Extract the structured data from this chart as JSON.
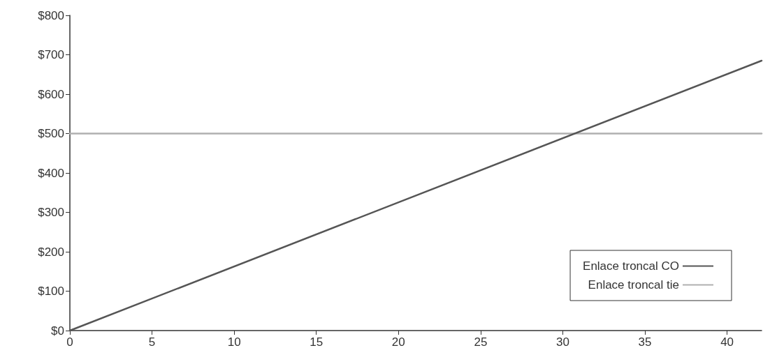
{
  "chart_data": {
    "type": "line",
    "x": [
      0,
      42.1
    ],
    "xlim": [
      0,
      42.1
    ],
    "xticks": [
      0,
      5,
      10,
      15,
      20,
      25,
      30,
      35,
      40
    ],
    "ylim": [
      0,
      800
    ],
    "yticks": [
      {
        "value": 0,
        "label": "$0"
      },
      {
        "value": 100,
        "label": "$100"
      },
      {
        "value": 200,
        "label": "$200"
      },
      {
        "value": 300,
        "label": "$300"
      },
      {
        "value": 400,
        "label": "$400"
      },
      {
        "value": 500,
        "label": "$500"
      },
      {
        "value": 600,
        "label": "$600"
      },
      {
        "value": 700,
        "label": "$700"
      },
      {
        "value": 800,
        "label": "$800"
      }
    ],
    "series": [
      {
        "name": "Enlace troncal CO",
        "color": "#555555",
        "values": [
          0,
          685
        ]
      },
      {
        "name": "Enlace troncal tie",
        "color": "#b0b0b0",
        "values": [
          500,
          500
        ]
      }
    ],
    "grid": false,
    "legend": "bottom right",
    "marker": "none",
    "line_style": "solid"
  }
}
